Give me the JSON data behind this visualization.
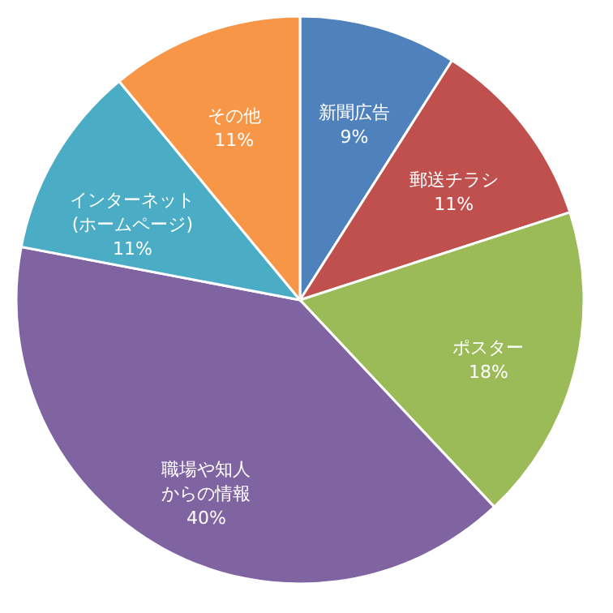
{
  "chart_data": {
    "type": "pie",
    "categories": [
      "新聞広告",
      "郵送チラシ",
      "ポスター",
      "職場や知人からの情報",
      "インターネット(ホームページ)",
      "その他"
    ],
    "values": [
      9,
      11,
      18,
      40,
      11,
      11
    ],
    "value_labels": [
      "9%",
      "11%",
      "18%",
      "40%",
      "11%",
      "11%"
    ],
    "colors": [
      "#4f81bd",
      "#c0504d",
      "#9bbb59",
      "#8064a2",
      "#4bacc6",
      "#f79646"
    ],
    "legend": false
  }
}
